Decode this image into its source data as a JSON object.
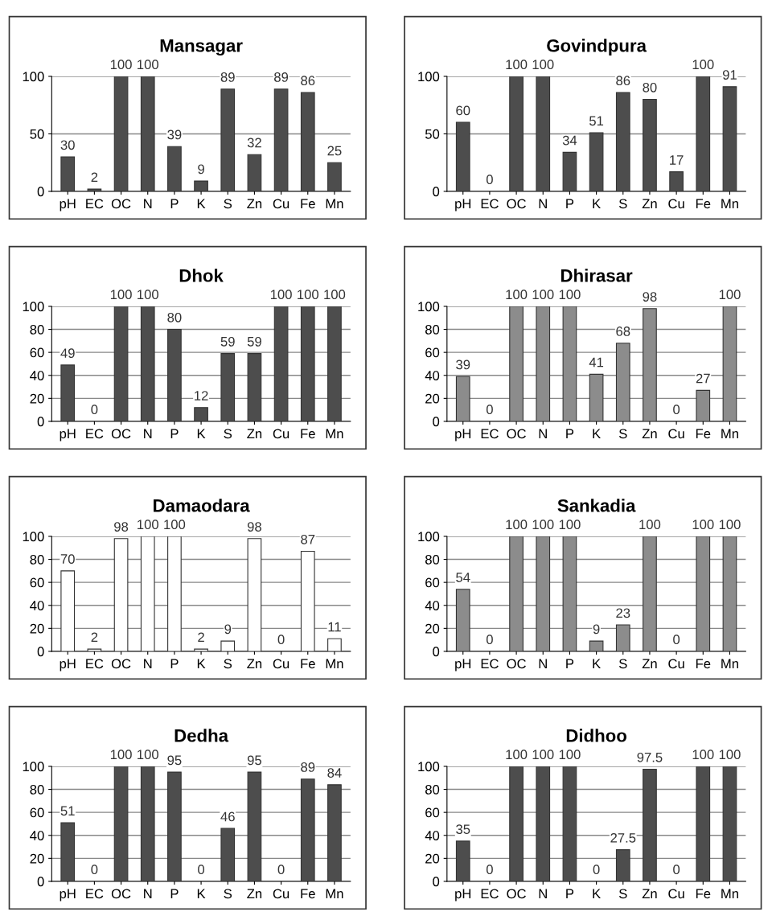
{
  "chart_data": [
    {
      "type": "bar",
      "title": "Mansagar",
      "categories": [
        "pH",
        "EC",
        "OC",
        "N",
        "P",
        "K",
        "S",
        "Zn",
        "Cu",
        "Fe",
        "Mn"
      ],
      "values": [
        30,
        2,
        100,
        100,
        39,
        9,
        89,
        32,
        89,
        86,
        25
      ],
      "color": "#4d4d4d",
      "ylim": [
        0,
        100
      ],
      "yticks": [
        0,
        50,
        100
      ],
      "grid": "y",
      "data_labels": true
    },
    {
      "type": "bar",
      "title": "Govindpura",
      "categories": [
        "pH",
        "EC",
        "OC",
        "N",
        "P",
        "K",
        "S",
        "Zn",
        "Cu",
        "Fe",
        "Mn"
      ],
      "values": [
        60,
        0,
        100,
        100,
        34,
        51,
        86,
        80,
        17,
        100,
        91
      ],
      "color": "#4d4d4d",
      "ylim": [
        0,
        100
      ],
      "yticks": [
        0,
        50,
        100
      ],
      "grid": "y",
      "data_labels": true
    },
    {
      "type": "bar",
      "title": "Dhok",
      "categories": [
        "pH",
        "EC",
        "OC",
        "N",
        "P",
        "K",
        "S",
        "Zn",
        "Cu",
        "Fe",
        "Mn"
      ],
      "values": [
        49,
        0,
        100,
        100,
        80,
        12,
        59,
        59,
        100,
        100,
        100
      ],
      "color": "#4d4d4d",
      "ylim": [
        0,
        100
      ],
      "yticks": [
        0,
        20,
        40,
        60,
        80,
        100
      ],
      "grid": "y",
      "data_labels": true
    },
    {
      "type": "bar",
      "title": "Dhirasar",
      "categories": [
        "pH",
        "EC",
        "OC",
        "N",
        "P",
        "K",
        "S",
        "Zn",
        "Cu",
        "Fe",
        "Mn"
      ],
      "values": [
        39,
        0,
        100,
        100,
        100,
        41,
        68,
        98,
        0,
        27,
        100
      ],
      "color": "#8c8c8c",
      "ylim": [
        0,
        100
      ],
      "yticks": [
        0,
        20,
        40,
        60,
        80,
        100
      ],
      "grid": "y",
      "data_labels": true
    },
    {
      "type": "bar",
      "title": "Damaodara",
      "categories": [
        "pH",
        "EC",
        "OC",
        "N",
        "P",
        "K",
        "S",
        "Zn",
        "Cu",
        "Fe",
        "Mn"
      ],
      "values": [
        70,
        2,
        98,
        100,
        100,
        2,
        9,
        98,
        0,
        87,
        11
      ],
      "color": "#ffffff",
      "ylim": [
        0,
        100
      ],
      "yticks": [
        0,
        20,
        40,
        60,
        80,
        100
      ],
      "grid": "y",
      "data_labels": true
    },
    {
      "type": "bar",
      "title": "Sankadia",
      "categories": [
        "pH",
        "EC",
        "OC",
        "N",
        "P",
        "K",
        "S",
        "Zn",
        "Cu",
        "Fe",
        "Mn"
      ],
      "values": [
        54,
        0,
        100,
        100,
        100,
        9,
        23,
        100,
        0,
        100,
        100
      ],
      "color": "#8c8c8c",
      "ylim": [
        0,
        100
      ],
      "yticks": [
        0,
        20,
        40,
        60,
        80,
        100
      ],
      "grid": "y",
      "data_labels": true
    },
    {
      "type": "bar",
      "title": "Dedha",
      "categories": [
        "pH",
        "EC",
        "OC",
        "N",
        "P",
        "K",
        "S",
        "Zn",
        "Cu",
        "Fe",
        "Mn"
      ],
      "values": [
        51,
        0,
        100,
        100,
        95,
        0,
        46,
        95,
        0,
        89,
        84
      ],
      "color": "#4d4d4d",
      "ylim": [
        0,
        100
      ],
      "yticks": [
        0,
        20,
        40,
        60,
        80,
        100
      ],
      "grid": "y",
      "data_labels": true
    },
    {
      "type": "bar",
      "title": "Didhoo",
      "categories": [
        "pH",
        "EC",
        "OC",
        "N",
        "P",
        "K",
        "S",
        "Zn",
        "Cu",
        "Fe",
        "Mn"
      ],
      "values": [
        35,
        0,
        100,
        100,
        100,
        0,
        27.5,
        97.5,
        0,
        100,
        100
      ],
      "color": "#4d4d4d",
      "ylim": [
        0,
        100
      ],
      "yticks": [
        0,
        20,
        40,
        60,
        80,
        100
      ],
      "grid": "y",
      "data_labels": true
    }
  ]
}
